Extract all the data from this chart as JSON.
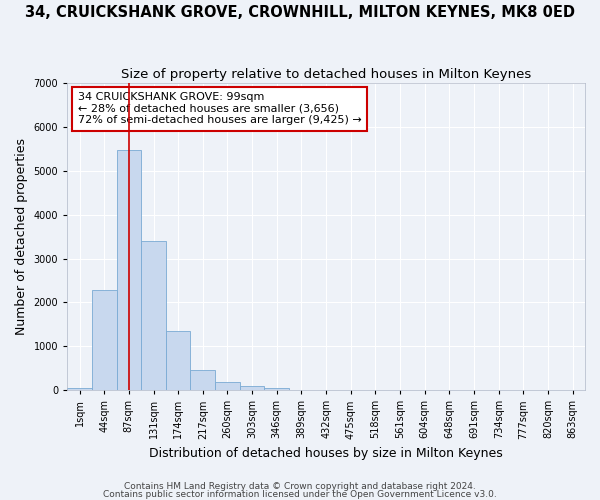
{
  "title": "34, CRUICKSHANK GROVE, CROWNHILL, MILTON KEYNES, MK8 0ED",
  "subtitle": "Size of property relative to detached houses in Milton Keynes",
  "xlabel": "Distribution of detached houses by size in Milton Keynes",
  "ylabel": "Number of detached properties",
  "footnote1": "Contains HM Land Registry data © Crown copyright and database right 2024.",
  "footnote2": "Contains public sector information licensed under the Open Government Licence v3.0.",
  "bar_labels": [
    "1sqm",
    "44sqm",
    "87sqm",
    "131sqm",
    "174sqm",
    "217sqm",
    "260sqm",
    "303sqm",
    "346sqm",
    "389sqm",
    "432sqm",
    "475sqm",
    "518sqm",
    "561sqm",
    "604sqm",
    "648sqm",
    "691sqm",
    "734sqm",
    "777sqm",
    "820sqm",
    "863sqm"
  ],
  "bar_values": [
    60,
    2280,
    5470,
    3400,
    1340,
    450,
    175,
    100,
    50,
    0,
    0,
    0,
    0,
    0,
    0,
    0,
    0,
    0,
    0,
    0,
    0
  ],
  "bar_color": "#c8d8ee",
  "bar_edge_color": "#7aaad4",
  "vline_x": 2.0,
  "vline_color": "#cc0000",
  "ylim": [
    0,
    7000
  ],
  "yticks": [
    0,
    1000,
    2000,
    3000,
    4000,
    5000,
    6000,
    7000
  ],
  "annotation_text": "34 CRUICKSHANK GROVE: 99sqm\n← 28% of detached houses are smaller (3,656)\n72% of semi-detached houses are larger (9,425) →",
  "annotation_box_color": "#ffffff",
  "annotation_box_edge": "#cc0000",
  "background_color": "#eef2f8",
  "grid_color": "#ffffff",
  "title_fontsize": 10.5,
  "subtitle_fontsize": 9.5,
  "axis_label_fontsize": 9,
  "tick_fontsize": 7,
  "footnote_fontsize": 6.5
}
